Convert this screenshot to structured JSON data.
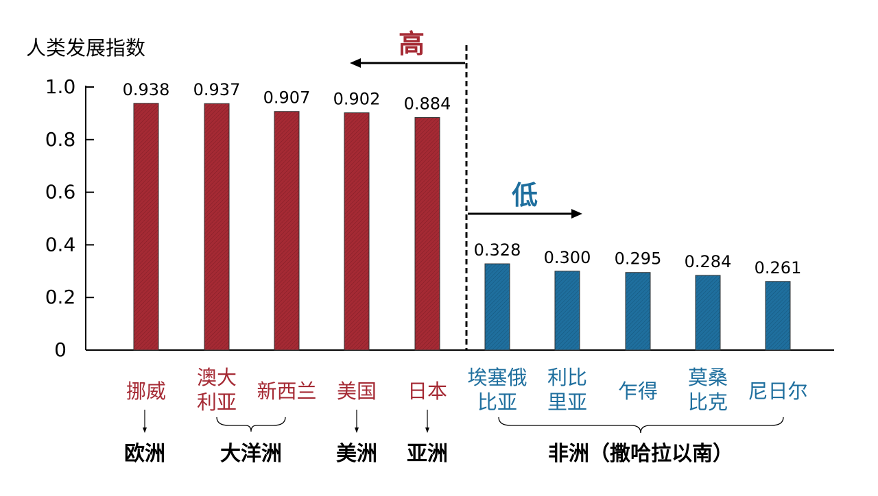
{
  "colors": {
    "high": "#a52a34",
    "low": "#1f6f9e",
    "axis": "#000000"
  },
  "chart_data": {
    "type": "bar",
    "ylabel": "人类发展指数",
    "ylim": [
      0,
      1.0
    ],
    "yticks": [
      "0",
      "0.2",
      "0.4",
      "0.6",
      "0.8",
      "1.0"
    ],
    "ytick_values": [
      0,
      0.2,
      0.4,
      0.6,
      0.8,
      1.0
    ],
    "categories": [
      [
        "挪威"
      ],
      [
        "澳大",
        "利亚"
      ],
      [
        "新西兰"
      ],
      [
        "美国"
      ],
      [
        "日本"
      ],
      [
        "埃塞俄",
        "比亚"
      ],
      [
        "利比",
        "里亚"
      ],
      [
        "乍得"
      ],
      [
        "莫桑",
        "比克"
      ],
      [
        "尼日尔"
      ]
    ],
    "values": [
      0.938,
      0.937,
      0.907,
      0.902,
      0.884,
      0.328,
      0.3,
      0.295,
      0.284,
      0.261
    ],
    "value_labels": [
      "0.938",
      "0.937",
      "0.907",
      "0.902",
      "0.884",
      "0.328",
      "0.300",
      "0.295",
      "0.284",
      "0.261"
    ],
    "groups": [
      "high",
      "high",
      "high",
      "high",
      "high",
      "low",
      "low",
      "low",
      "low",
      "low"
    ],
    "annotations": {
      "high_label": "高",
      "low_label": "低"
    },
    "regions": [
      "欧洲",
      "大洋洲",
      "美洲",
      "亚洲",
      "非洲（撒哈拉以南）"
    ]
  }
}
